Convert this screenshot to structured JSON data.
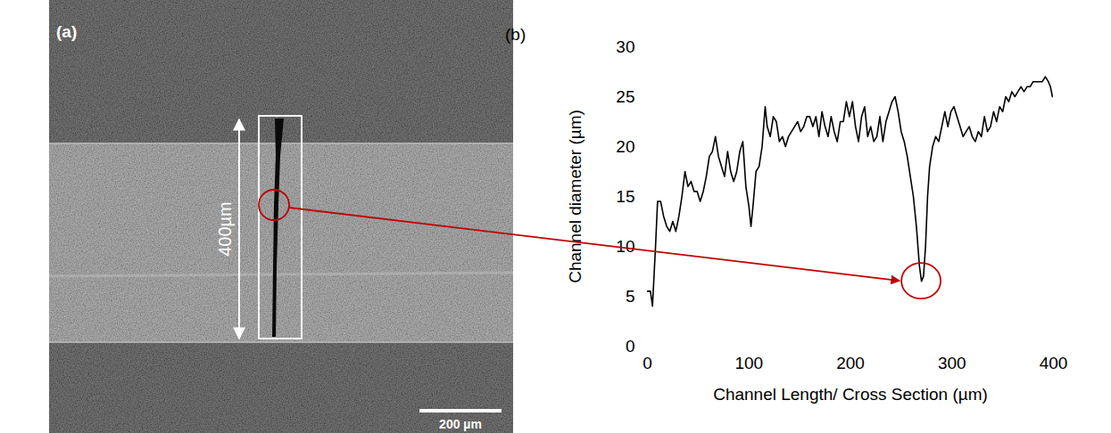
{
  "chart_data": {
    "type": "line",
    "panel_label": "(b)",
    "x_label": "Channel Length/ Cross Section (µm)",
    "y_label": "Channel diameter (µm)",
    "x": [
      0,
      3,
      5,
      8,
      10,
      13,
      16,
      19,
      22,
      25,
      28,
      31,
      34,
      37,
      40,
      43,
      46,
      49,
      52,
      55,
      58,
      61,
      64,
      67,
      70,
      73,
      76,
      79,
      82,
      85,
      88,
      91,
      94,
      97,
      100,
      102,
      104,
      107,
      110,
      113,
      116,
      118,
      121,
      124,
      127,
      130,
      133,
      136,
      139,
      142,
      145,
      148,
      151,
      154,
      157,
      160,
      163,
      166,
      169,
      172,
      175,
      178,
      181,
      184,
      187,
      190,
      193,
      196,
      199,
      202,
      205,
      208,
      211,
      214,
      217,
      220,
      223,
      226,
      229,
      232,
      235,
      238,
      241,
      244,
      247,
      250,
      253,
      256,
      259,
      262,
      265,
      268,
      270,
      272,
      274,
      276,
      278,
      281,
      284,
      287,
      290,
      293,
      296,
      299,
      302,
      305,
      308,
      311,
      314,
      317,
      320,
      323,
      326,
      329,
      332,
      335,
      338,
      341,
      344,
      347,
      350,
      353,
      356,
      359,
      362,
      365,
      368,
      371,
      374,
      377,
      380,
      383,
      386,
      389,
      392,
      395,
      397,
      399
    ],
    "values": [
      5.5,
      5.5,
      4,
      10,
      14.5,
      14.5,
      13,
      12,
      11.5,
      12.5,
      11.5,
      13,
      15,
      17.5,
      16,
      16.5,
      15.5,
      15.5,
      14.5,
      15.5,
      17,
      19,
      19.5,
      21,
      19,
      18,
      17,
      19.5,
      17.5,
      16.5,
      17.5,
      19.5,
      20.5,
      16,
      14,
      12,
      14,
      17.5,
      18,
      20,
      24,
      22,
      21,
      23,
      22.5,
      20.5,
      21,
      20,
      21,
      21.5,
      22,
      22.5,
      21.5,
      22,
      23,
      23,
      22,
      23,
      21,
      23.5,
      22,
      21,
      23,
      21.5,
      20.5,
      22.5,
      22.5,
      24.5,
      23,
      24.5,
      22,
      20.5,
      23,
      24,
      21,
      22,
      20.5,
      21,
      23,
      20.5,
      22.5,
      23.5,
      24.5,
      25,
      23.5,
      21.5,
      20.5,
      19,
      17,
      15,
      12,
      8,
      6.5,
      7,
      10,
      15,
      18,
      20,
      21,
      20.5,
      22,
      23.5,
      22,
      23.5,
      24,
      23,
      22,
      21,
      21.5,
      22,
      21,
      20.5,
      21.5,
      21,
      23,
      21.5,
      22,
      23.5,
      22.5,
      24,
      23.5,
      25,
      24.5,
      25.5,
      25,
      25.5,
      26,
      25.5,
      26,
      26,
      26.5,
      26.5,
      26.5,
      26.5,
      27,
      26.5,
      26,
      25
    ],
    "color": "#000000",
    "xlim": [
      0,
      400
    ],
    "xticks": [
      0,
      100,
      200,
      300,
      400
    ],
    "ylim": [
      0,
      30
    ],
    "yticks": [
      0,
      5,
      10,
      15,
      20,
      25,
      30
    ],
    "grid": false,
    "highlight_point": {
      "x": 270,
      "y": 6.5,
      "color": "#c00000"
    }
  },
  "image_panel": {
    "panel_label": "(a)",
    "dimension_label": "400µm",
    "scale_bar_label": "200 µm"
  }
}
